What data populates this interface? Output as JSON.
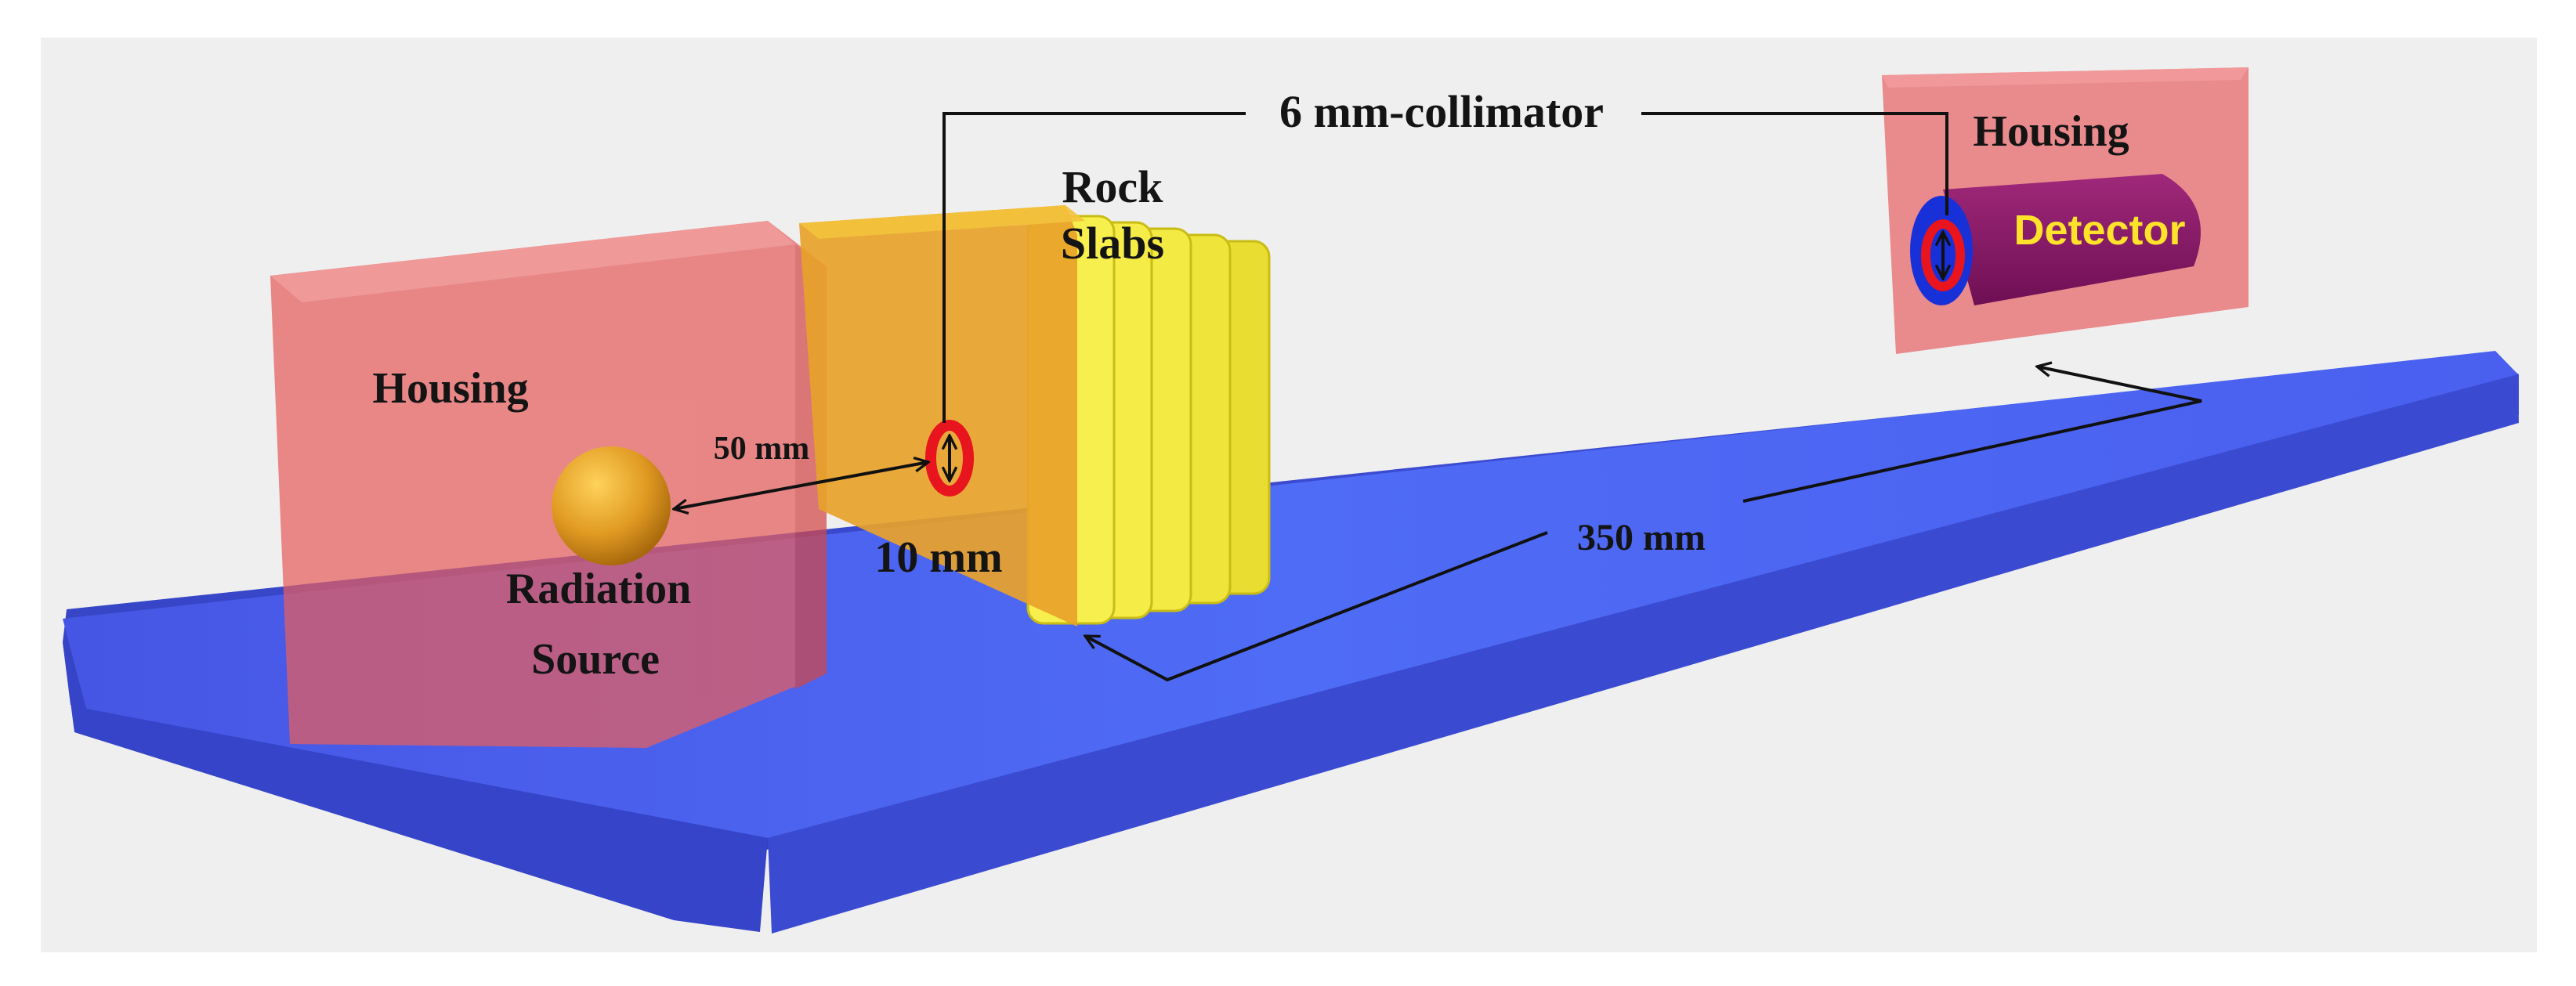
{
  "labels": {
    "collimator": "6 mm-collimator",
    "housing_right": "Housing",
    "detector": "Detector",
    "rock_slabs_line1": "Rock",
    "rock_slabs_line2": "Slabs",
    "housing_left": "Housing",
    "distance_source_collimator": "50 mm",
    "slab_thickness": "10 mm",
    "radiation_source_line1": "Radiation",
    "radiation_source_line2": "Source",
    "distance_slab_detector": "350 mm"
  },
  "colors": {
    "background": "#efefef",
    "platform": "#4a5df0",
    "housing": "#e86f6f",
    "rock_slab": "#f3ec45",
    "source_sphere": "#e0a024",
    "collimator_ring": "#e8141e",
    "detector_ring": "#1830d8",
    "detector_body": "#8a1a6a",
    "detector_label": "#ffe22a"
  }
}
